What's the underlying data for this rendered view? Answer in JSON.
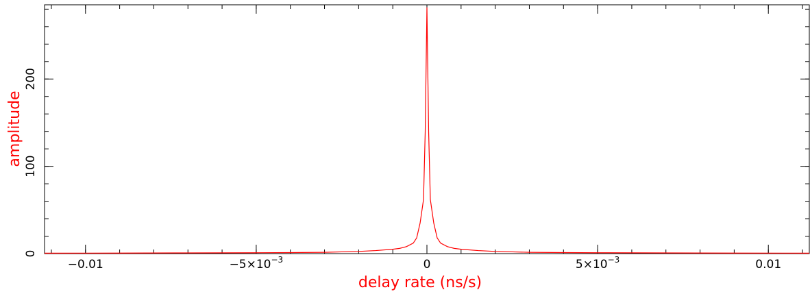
{
  "chart_data": {
    "type": "line",
    "title": "",
    "xlabel": "delay rate (ns/s)",
    "ylabel": "amplitude",
    "xlim": [
      -0.0112,
      0.0112
    ],
    "ylim": [
      0,
      285
    ],
    "grid": false,
    "x_ticks": [
      {
        "value": -0.01,
        "label": "−0.01"
      },
      {
        "value": -0.005,
        "label": "−5×10",
        "exp": "−3"
      },
      {
        "value": 0,
        "label": "0"
      },
      {
        "value": 0.005,
        "label": "5×10",
        "exp": "−3"
      },
      {
        "value": 0.01,
        "label": "0.01"
      }
    ],
    "y_ticks": [
      {
        "value": 0,
        "label": "0"
      },
      {
        "value": 100,
        "label": "100"
      },
      {
        "value": 200,
        "label": "200"
      }
    ],
    "series": [
      {
        "color": "#ff0000",
        "x": [
          -0.0112,
          -0.009,
          -0.007,
          -0.005,
          -0.004,
          -0.003,
          -0.0025,
          -0.002,
          -0.0015,
          -0.001,
          -0.0008,
          -0.0006,
          -0.0004,
          -0.0003,
          -0.0002,
          -0.0001,
          -5e-05,
          0,
          5e-05,
          0.0001,
          0.0002,
          0.0003,
          0.0004,
          0.0006,
          0.0008,
          0.001,
          0.0015,
          0.002,
          0.0025,
          0.003,
          0.004,
          0.005,
          0.007,
          0.009,
          0.0112
        ],
        "values": [
          0.5,
          0.6,
          0.8,
          1.0,
          1.2,
          1.5,
          2.0,
          2.5,
          3.5,
          5,
          6,
          8,
          12,
          18,
          35,
          62,
          140,
          282,
          140,
          62,
          35,
          18,
          12,
          8,
          6,
          5,
          3.5,
          2.5,
          2.0,
          1.5,
          1.2,
          1.0,
          0.8,
          0.6,
          0.5
        ]
      }
    ]
  },
  "colors": {
    "frame": "#000000",
    "accent": "#ff0000"
  }
}
